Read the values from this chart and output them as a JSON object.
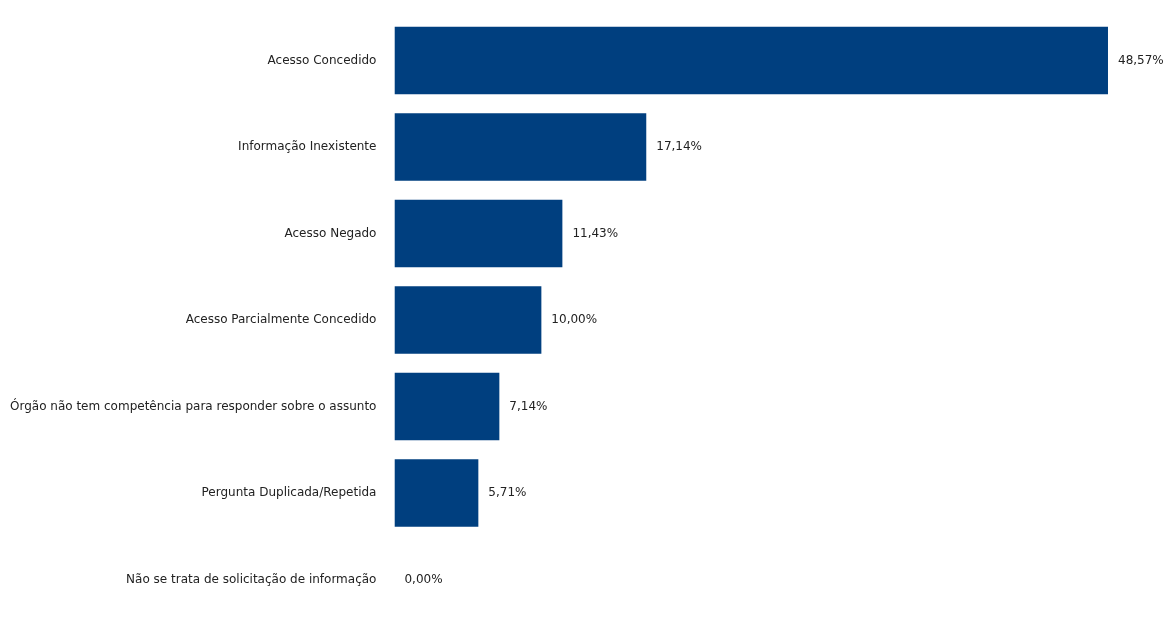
{
  "chart_data": {
    "type": "bar",
    "orientation": "horizontal",
    "categories": [
      "Acesso Concedido",
      "Informação Inexistente",
      "Acesso Negado",
      "Acesso Parcialmente Concedido",
      "Órgão não tem competência para responder sobre o assunto",
      "Pergunta Duplicada/Repetida",
      "Não se trata de solicitação de informação"
    ],
    "values": [
      48.57,
      17.14,
      11.43,
      10.0,
      7.14,
      5.71,
      0.0
    ],
    "color": "#003f7f",
    "value_labels": [
      "48,57%",
      "17,14%",
      "11,43%",
      "10,00%",
      "7,14%",
      "5,71%",
      "0,00%"
    ]
  }
}
